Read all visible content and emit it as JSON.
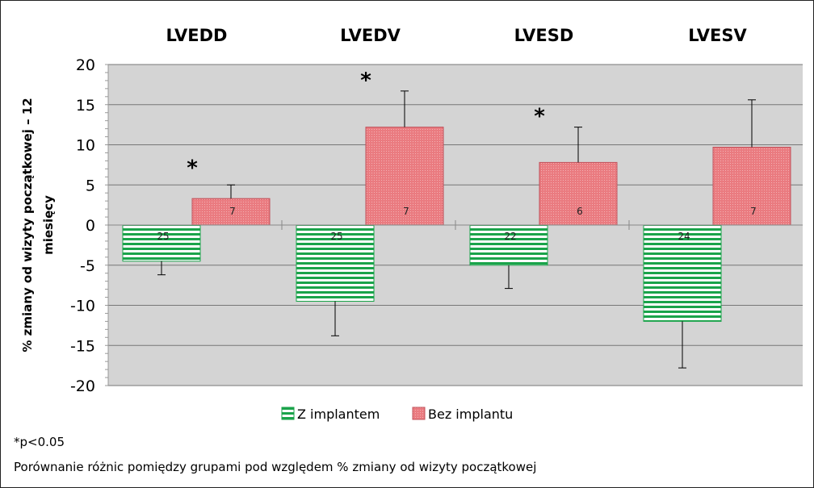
{
  "chart_data": {
    "type": "bar",
    "categories": [
      "LVEDD",
      "LVEDV",
      "LVESD",
      "LVESV"
    ],
    "ylabel": [
      "% zmiany od wizyty początkowej – 12",
      "miesięcy"
    ],
    "ylim": [
      -20,
      20
    ],
    "yticks": [
      20,
      15,
      10,
      5,
      0,
      -5,
      -10,
      -15,
      -20
    ],
    "series": [
      {
        "name": "Z implantem",
        "color": "#1aa34a",
        "values": [
          -4.5,
          -9.5,
          -5.0,
          -12.0
        ],
        "error": [
          1.7,
          4.3,
          2.9,
          5.8
        ],
        "n": [
          "25",
          "25",
          "22",
          "24"
        ]
      },
      {
        "name": "Bez implantu",
        "color": "#e8737a",
        "values": [
          3.3,
          12.2,
          7.8,
          9.7
        ],
        "error": [
          1.7,
          4.5,
          4.4,
          5.9
        ],
        "n": [
          "7",
          "7",
          "6",
          "7"
        ]
      }
    ],
    "significance": [
      "*",
      "*",
      "*",
      ""
    ],
    "grid": true,
    "legend": "bottom"
  },
  "notes": {
    "footnote": "*p<0.05",
    "caption": "Porównanie różnic pomiędzy grupami pod względem % zmiany od wizyty początkowej"
  }
}
